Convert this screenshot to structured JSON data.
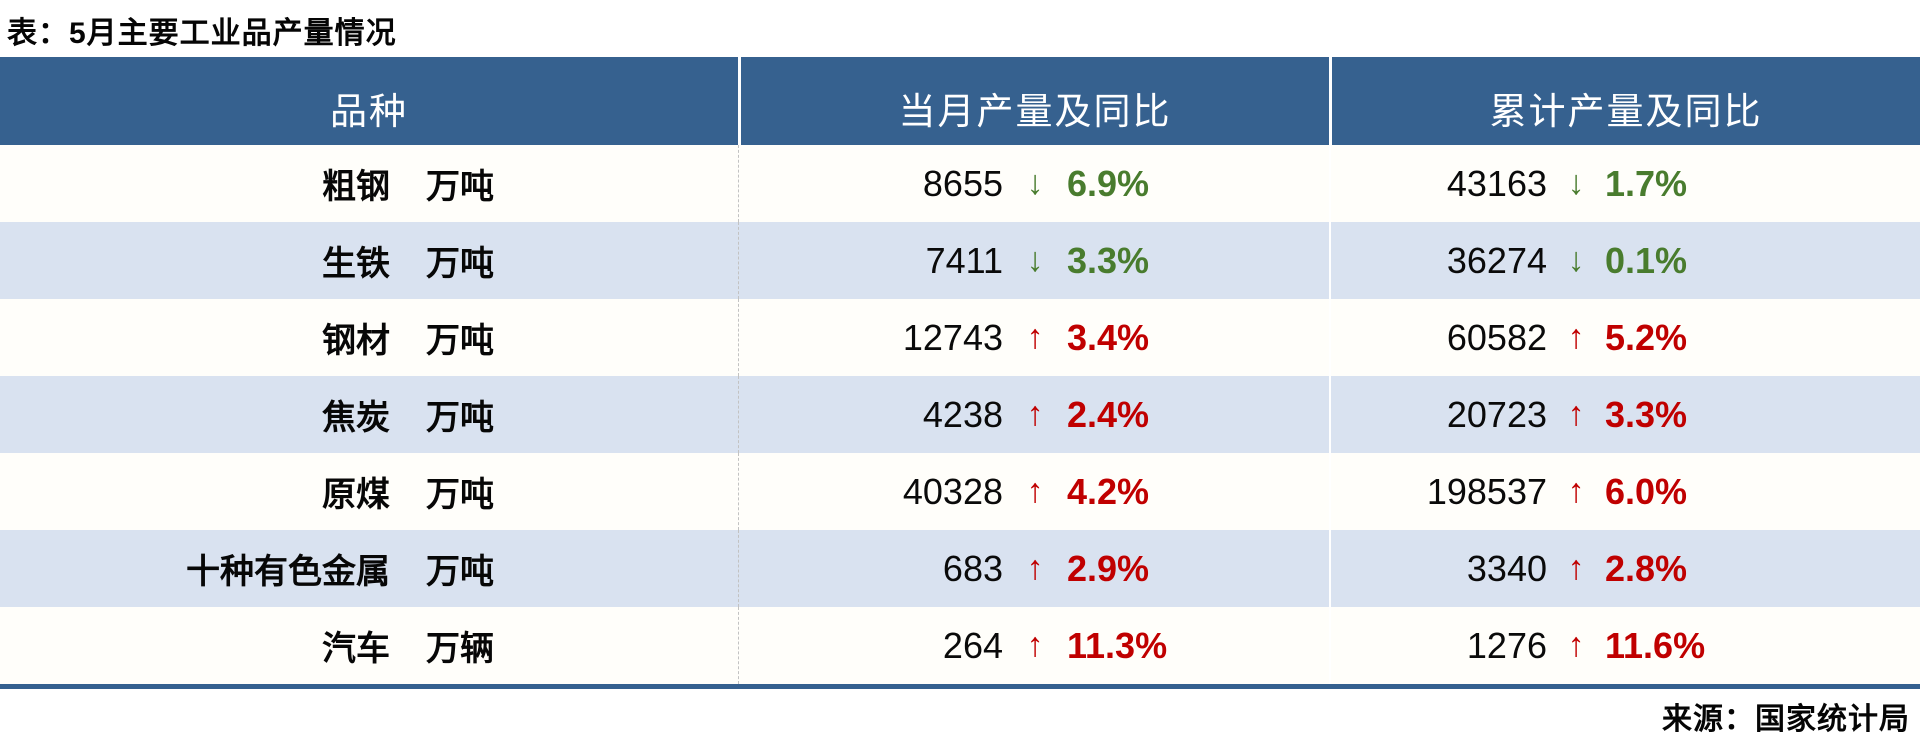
{
  "title": "表：5月主要工业品产量情况",
  "source": "来源：国家统计局",
  "icons": {
    "up": "↑",
    "down": "↓"
  },
  "colors": {
    "up_red": "#c00000",
    "down_green": "#497c2e",
    "header_bg": "#36618f",
    "header_text": "#ffffff",
    "row_bg": "#fffefa",
    "row_alt_bg": "#d9e2f0",
    "bottom_border": "#35608f",
    "divider_dashed": "#c2c2c2"
  },
  "chart_data": {
    "type": "table",
    "title": "表：5月主要工业品产量情况",
    "columns": [
      "品种",
      "当月产量及同比",
      "累计产量及同比"
    ],
    "rows": [
      {
        "name": "粗钢",
        "unit": "万吨",
        "monthly": {
          "value": "8655",
          "direction": "down",
          "yoy": "6.9%"
        },
        "cumulative": {
          "value": "43163",
          "direction": "down",
          "yoy": "1.7%"
        }
      },
      {
        "name": "生铁",
        "unit": "万吨",
        "monthly": {
          "value": "7411",
          "direction": "down",
          "yoy": "3.3%"
        },
        "cumulative": {
          "value": "36274",
          "direction": "down",
          "yoy": "0.1%"
        }
      },
      {
        "name": "钢材",
        "unit": "万吨",
        "monthly": {
          "value": "12743",
          "direction": "up",
          "yoy": "3.4%"
        },
        "cumulative": {
          "value": "60582",
          "direction": "up",
          "yoy": "5.2%"
        }
      },
      {
        "name": "焦炭",
        "unit": "万吨",
        "monthly": {
          "value": "4238",
          "direction": "up",
          "yoy": "2.4%"
        },
        "cumulative": {
          "value": "20723",
          "direction": "up",
          "yoy": "3.3%"
        }
      },
      {
        "name": "原煤",
        "unit": "万吨",
        "monthly": {
          "value": "40328",
          "direction": "up",
          "yoy": "4.2%"
        },
        "cumulative": {
          "value": "198537",
          "direction": "up",
          "yoy": "6.0%"
        }
      },
      {
        "name": "十种有色金属",
        "unit": "万吨",
        "monthly": {
          "value": "683",
          "direction": "up",
          "yoy": "2.9%"
        },
        "cumulative": {
          "value": "3340",
          "direction": "up",
          "yoy": "2.8%"
        }
      },
      {
        "name": "汽车",
        "unit": "万辆",
        "monthly": {
          "value": "264",
          "direction": "up",
          "yoy": "11.3%"
        },
        "cumulative": {
          "value": "1276",
          "direction": "up",
          "yoy": "11.6%"
        }
      }
    ],
    "source": "来源：国家统计局"
  }
}
